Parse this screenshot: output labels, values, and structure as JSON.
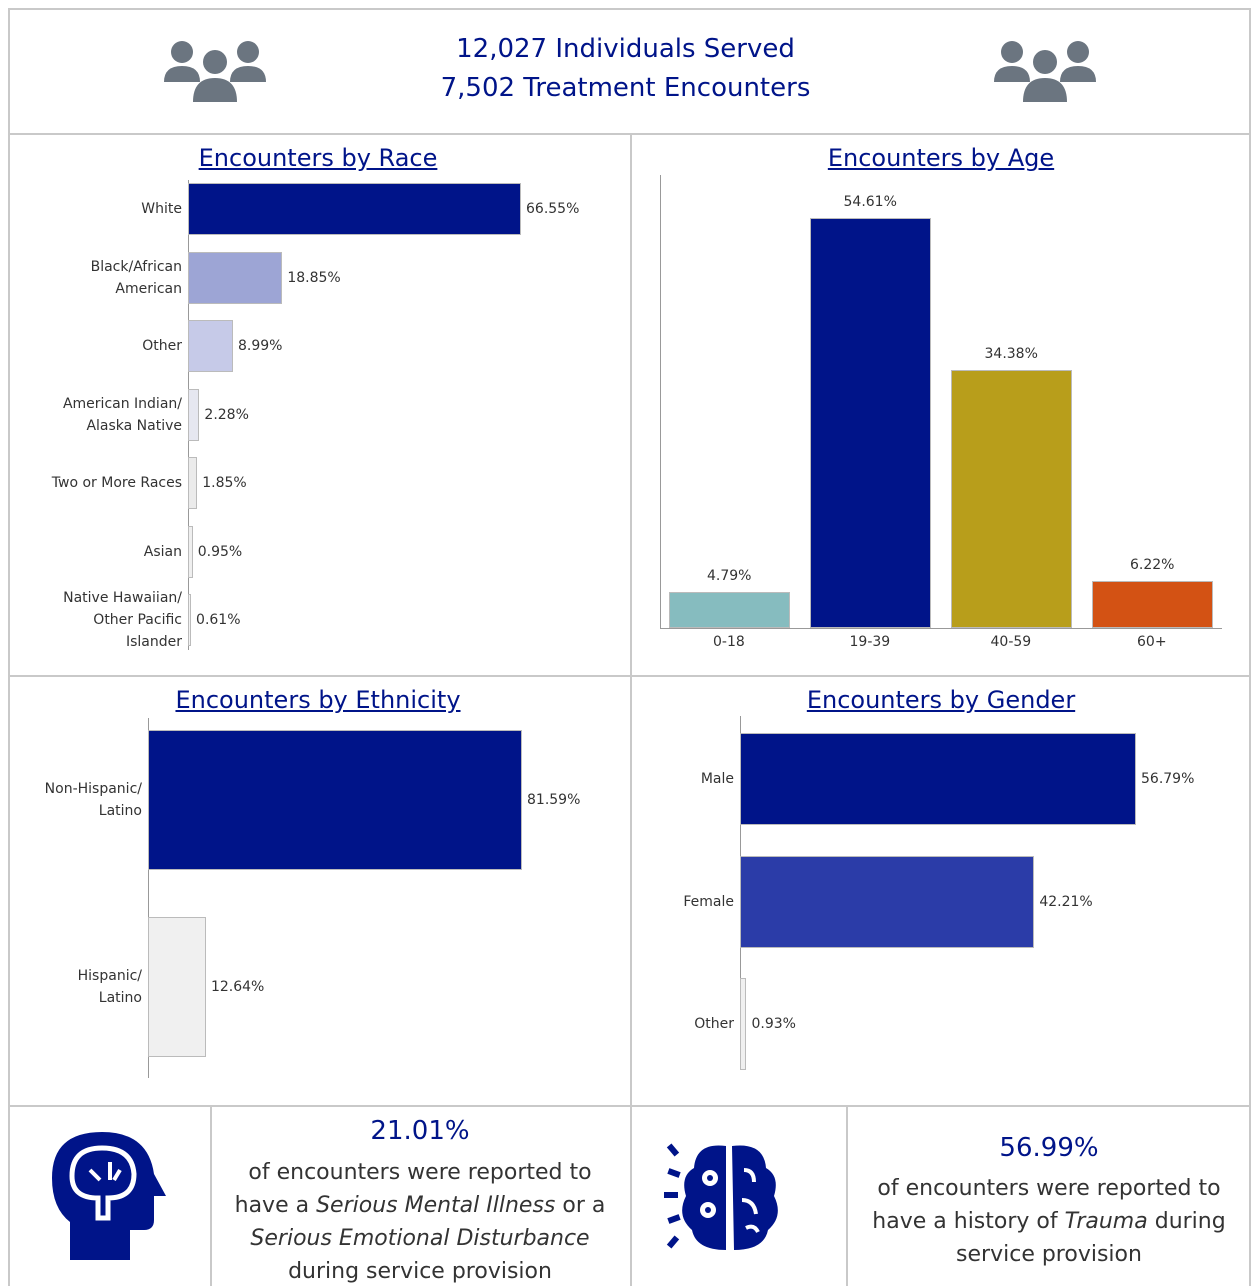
{
  "header": {
    "line1": "12,027 Individuals Served",
    "line2": "7,502 Treatment Encounters"
  },
  "chart_data": [
    {
      "type": "bar",
      "orientation": "horizontal",
      "title": "Encounters by Race",
      "categories": [
        "White",
        "Black/African\nAmerican",
        "Other",
        "American Indian/\nAlaska Native",
        "Two or More Races",
        "Asian",
        "Native Hawaiian/\nOther Pacific\nIslander"
      ],
      "values": [
        66.55,
        18.85,
        8.99,
        2.28,
        1.85,
        0.95,
        0.61
      ],
      "value_labels": [
        "66.55%",
        "18.85%",
        "8.99%",
        "2.28%",
        "1.85%",
        "0.95%",
        "0.61%"
      ],
      "colors": [
        "#001489",
        "#9da5d5",
        "#c6cae8",
        "#e6e7f0",
        "#ebebeb",
        "#efefef",
        "#f2f2f2"
      ]
    },
    {
      "type": "bar",
      "orientation": "vertical",
      "title": "Encounters by Age",
      "categories": [
        "0-18",
        "19-39",
        "40-59",
        "60+"
      ],
      "values": [
        4.79,
        54.61,
        34.38,
        6.22
      ],
      "value_labels": [
        "4.79%",
        "54.61%",
        "34.38%",
        "6.22%"
      ],
      "colors": [
        "#86bcbf",
        "#001489",
        "#b89e1b",
        "#d35214"
      ]
    },
    {
      "type": "bar",
      "orientation": "horizontal",
      "title": "Encounters by Ethnicity",
      "categories": [
        "Non-Hispanic/\nLatino",
        "Hispanic/\nLatino"
      ],
      "values": [
        81.59,
        12.64
      ],
      "value_labels": [
        "81.59%",
        "12.64%"
      ],
      "colors": [
        "#001489",
        "#f0f0f0"
      ]
    },
    {
      "type": "bar",
      "orientation": "horizontal",
      "title": "Encounters by Gender",
      "categories": [
        "Male",
        "Female",
        "Other"
      ],
      "values": [
        56.79,
        42.21,
        0.93
      ],
      "value_labels": [
        "56.79%",
        "42.21%",
        "0.93%"
      ],
      "colors": [
        "#001489",
        "#2b3ca8",
        "#f0f0f0"
      ]
    }
  ],
  "stats": [
    {
      "value": "21.01%",
      "parts": [
        {
          "text": "of encounters were reported to have a ",
          "italic": false
        },
        {
          "text": "Serious Mental Illness",
          "italic": true
        },
        {
          "text": " or a ",
          "italic": false
        },
        {
          "text": "Serious Emotional Disturbance",
          "italic": true
        },
        {
          "text": " during service provision",
          "italic": false
        }
      ]
    },
    {
      "value": "56.99%",
      "parts": [
        {
          "text": "of encounters were reported to have a history of ",
          "italic": false
        },
        {
          "text": "Trauma",
          "italic": true
        },
        {
          "text": " during service provision",
          "italic": false
        }
      ]
    }
  ]
}
